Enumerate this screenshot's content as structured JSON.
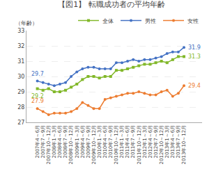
{
  "chart_data": {
    "type": "line",
    "title": "【図1】 転職成功者の平均年齢",
    "ylabel": "（年齢）",
    "categories": [
      "2007年4～6月",
      "2007年7～9月",
      "2007年10～12月",
      "2008年1～3月",
      "2008年4～6月",
      "2008年7～9月",
      "2008年10～12月",
      "2009年1～3月",
      "2009年4～6月",
      "2009年7～9月",
      "2009年10～12月",
      "2010年1～3月",
      "2010年4～6月",
      "2010年7～9月",
      "2010年10～12月",
      "2011年1～3月",
      "2011年4～6月",
      "2011年7～9月",
      "2011年10～12月",
      "2012年1～3月",
      "2012年4～6月",
      "2012年7～9月",
      "2012年10～12月",
      "2013年1～3月",
      "2013年4～6月",
      "2013年7～9月",
      "2013年10～12月"
    ],
    "series": [
      {
        "name": "全体",
        "color": "#82b82a",
        "marker": "square",
        "line_style": "solid",
        "values": [
          29.2,
          29.1,
          29.2,
          29.0,
          29.0,
          29.1,
          29.3,
          29.5,
          29.8,
          30.0,
          30.0,
          29.9,
          30.0,
          30.0,
          30.4,
          30.4,
          30.5,
          30.6,
          30.7,
          30.8,
          30.8,
          30.9,
          31.0,
          30.9,
          31.1,
          31.3,
          31.3
        ]
      },
      {
        "name": "男性",
        "color": "#4472c4",
        "marker": "circle",
        "line_style": "solid",
        "values": [
          29.7,
          29.6,
          29.5,
          29.4,
          29.5,
          29.6,
          30.0,
          30.3,
          30.5,
          30.6,
          30.6,
          30.5,
          30.5,
          30.5,
          30.9,
          30.9,
          31.0,
          31.1,
          31.0,
          31.1,
          31.1,
          31.2,
          31.3,
          31.5,
          31.6,
          31.6,
          31.9
        ]
      },
      {
        "name": "女性",
        "color": "#ed7d31",
        "marker": "circle",
        "line_style": "solid",
        "values": [
          27.9,
          27.7,
          27.5,
          27.6,
          27.6,
          27.6,
          27.7,
          27.9,
          28.3,
          28.1,
          27.9,
          27.9,
          28.5,
          28.6,
          28.7,
          28.8,
          28.9,
          28.9,
          29.0,
          28.9,
          28.8,
          28.8,
          29.0,
          29.1,
          28.7,
          28.9,
          29.4
        ]
      }
    ],
    "annotations": [
      {
        "text": "29.7",
        "series": "男性",
        "x": "2007年4～6月",
        "y": 29.7
      },
      {
        "text": "29.2",
        "series": "全体",
        "x": "2007年4～6月",
        "y": 29.2
      },
      {
        "text": "27.9",
        "series": "女性",
        "x": "2007年4～6月",
        "y": 27.9
      },
      {
        "text": "31.9",
        "series": "男性",
        "x": "2013年10～12月",
        "y": 31.9
      },
      {
        "text": "31.3",
        "series": "全体",
        "x": "2013年10～12月",
        "y": 31.3
      },
      {
        "text": "29.4",
        "series": "女性",
        "x": "2013年10～12月",
        "y": 29.4
      }
    ],
    "ylim": [
      27,
      33
    ],
    "yticks": [
      27,
      28,
      29,
      30,
      31,
      32,
      33
    ],
    "grid": true,
    "legend": "top"
  }
}
